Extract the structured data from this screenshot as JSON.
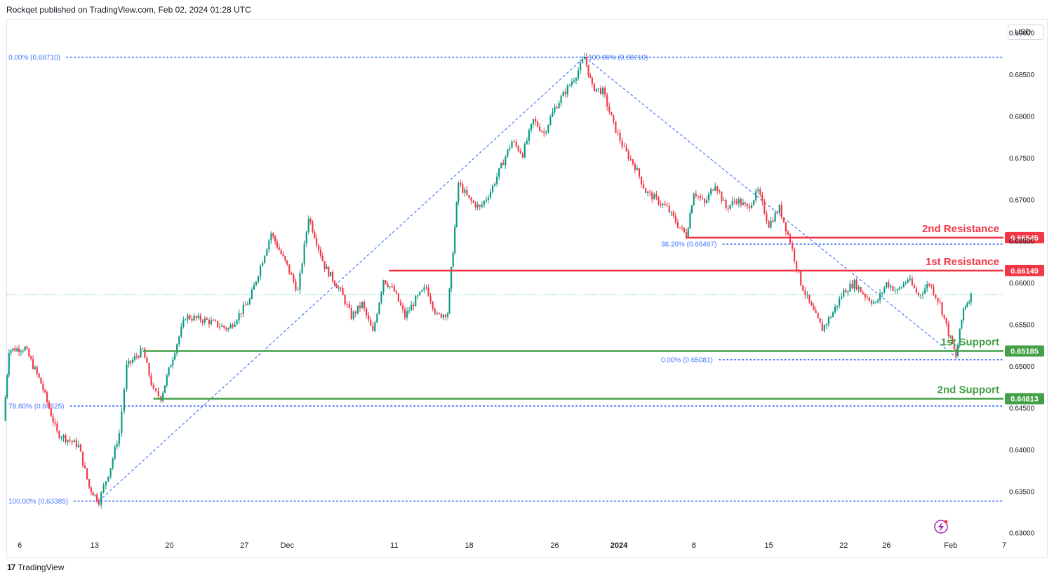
{
  "header": {
    "publisher_line": "Rockqet published on TradingView.com, Feb 02, 2024 01:28 UTC"
  },
  "currency_button": "USD",
  "footer": {
    "brand": "TradingView",
    "logo_mark": "17"
  },
  "colors": {
    "up": "#089981",
    "down": "#f23645",
    "resistance": "#f23645",
    "support": "#43a047",
    "fib": "#2962ff"
  },
  "chart_data": {
    "type": "candlestick",
    "y_axis": {
      "min": 0.6296,
      "max": 0.6916,
      "ticks": [
        "0.69000",
        "0.68500",
        "0.68000",
        "0.67500",
        "0.67000",
        "0.66500",
        "0.66000",
        "0.65500",
        "0.65000",
        "0.64500",
        "0.64000",
        "0.63500",
        "0.63000"
      ]
    },
    "x_axis": {
      "ticks": [
        {
          "label": "6",
          "day": 0
        },
        {
          "label": "13",
          "day": 7
        },
        {
          "label": "20",
          "day": 14
        },
        {
          "label": "27",
          "day": 21
        },
        {
          "label": "Dec",
          "day": 25
        },
        {
          "label": "11",
          "day": 35
        },
        {
          "label": "18",
          "day": 42
        },
        {
          "label": "26",
          "day": 50
        },
        {
          "label": "2024",
          "day": 56
        },
        {
          "label": "8",
          "day": 63
        },
        {
          "label": "15",
          "day": 70
        },
        {
          "label": "22",
          "day": 77
        },
        {
          "label": "26",
          "day": 81
        },
        {
          "label": "Feb",
          "day": 87
        },
        {
          "label": "7",
          "day": 92
        }
      ]
    },
    "key_points": [
      {
        "day": -1.5,
        "price": 0.6435
      },
      {
        "day": -1.0,
        "price": 0.652
      },
      {
        "day": 0.5,
        "price": 0.6522
      },
      {
        "day": 2.0,
        "price": 0.648
      },
      {
        "day": 3.5,
        "price": 0.642
      },
      {
        "day": 5.5,
        "price": 0.6405
      },
      {
        "day": 6.5,
        "price": 0.6355
      },
      {
        "day": 7.4,
        "price": 0.63385
      },
      {
        "day": 8.5,
        "price": 0.638
      },
      {
        "day": 9.3,
        "price": 0.642
      },
      {
        "day": 10.0,
        "price": 0.65
      },
      {
        "day": 11.5,
        "price": 0.652
      },
      {
        "day": 12.5,
        "price": 0.647
      },
      {
        "day": 13.2,
        "price": 0.64625
      },
      {
        "day": 14.5,
        "price": 0.652
      },
      {
        "day": 15.5,
        "price": 0.656
      },
      {
        "day": 17.5,
        "price": 0.6555
      },
      {
        "day": 19.5,
        "price": 0.6545
      },
      {
        "day": 21.5,
        "price": 0.658
      },
      {
        "day": 23.5,
        "price": 0.666
      },
      {
        "day": 25.0,
        "price": 0.662
      },
      {
        "day": 26.0,
        "price": 0.659
      },
      {
        "day": 27.0,
        "price": 0.668
      },
      {
        "day": 28.5,
        "price": 0.662
      },
      {
        "day": 30.0,
        "price": 0.659
      },
      {
        "day": 31.0,
        "price": 0.656
      },
      {
        "day": 32.0,
        "price": 0.6575
      },
      {
        "day": 33.0,
        "price": 0.654
      },
      {
        "day": 34.0,
        "price": 0.6605
      },
      {
        "day": 35.0,
        "price": 0.659
      },
      {
        "day": 36.0,
        "price": 0.656
      },
      {
        "day": 37.0,
        "price": 0.658
      },
      {
        "day": 38.0,
        "price": 0.6595
      },
      {
        "day": 39.0,
        "price": 0.656
      },
      {
        "day": 40.0,
        "price": 0.6565
      },
      {
        "day": 40.5,
        "price": 0.664
      },
      {
        "day": 41.0,
        "price": 0.672
      },
      {
        "day": 42.0,
        "price": 0.67
      },
      {
        "day": 43.0,
        "price": 0.669
      },
      {
        "day": 44.0,
        "price": 0.671
      },
      {
        "day": 45.0,
        "price": 0.674
      },
      {
        "day": 46.0,
        "price": 0.677
      },
      {
        "day": 47.0,
        "price": 0.6755
      },
      {
        "day": 48.0,
        "price": 0.6795
      },
      {
        "day": 49.0,
        "price": 0.678
      },
      {
        "day": 50.0,
        "price": 0.681
      },
      {
        "day": 51.0,
        "price": 0.683
      },
      {
        "day": 52.0,
        "price": 0.685
      },
      {
        "day": 52.8,
        "price": 0.6871
      },
      {
        "day": 53.5,
        "price": 0.6835
      },
      {
        "day": 54.5,
        "price": 0.683
      },
      {
        "day": 55.5,
        "price": 0.679
      },
      {
        "day": 56.5,
        "price": 0.676
      },
      {
        "day": 57.5,
        "price": 0.674
      },
      {
        "day": 58.5,
        "price": 0.671
      },
      {
        "day": 59.5,
        "price": 0.67
      },
      {
        "day": 60.5,
        "price": 0.669
      },
      {
        "day": 61.5,
        "price": 0.667
      },
      {
        "day": 62.3,
        "price": 0.6657
      },
      {
        "day": 63.0,
        "price": 0.671
      },
      {
        "day": 64.0,
        "price": 0.6695
      },
      {
        "day": 65.0,
        "price": 0.672
      },
      {
        "day": 66.0,
        "price": 0.669
      },
      {
        "day": 67.0,
        "price": 0.67
      },
      {
        "day": 68.0,
        "price": 0.669
      },
      {
        "day": 69.0,
        "price": 0.671
      },
      {
        "day": 70.0,
        "price": 0.667
      },
      {
        "day": 71.0,
        "price": 0.669
      },
      {
        "day": 72.0,
        "price": 0.665
      },
      {
        "day": 73.0,
        "price": 0.66
      },
      {
        "day": 74.0,
        "price": 0.657
      },
      {
        "day": 75.0,
        "price": 0.6545
      },
      {
        "day": 76.0,
        "price": 0.6565
      },
      {
        "day": 77.0,
        "price": 0.659
      },
      {
        "day": 78.0,
        "price": 0.66
      },
      {
        "day": 79.0,
        "price": 0.6585
      },
      {
        "day": 80.0,
        "price": 0.6575
      },
      {
        "day": 81.0,
        "price": 0.66
      },
      {
        "day": 82.0,
        "price": 0.659
      },
      {
        "day": 83.0,
        "price": 0.6605
      },
      {
        "day": 84.0,
        "price": 0.6585
      },
      {
        "day": 85.0,
        "price": 0.66
      },
      {
        "day": 86.0,
        "price": 0.6575
      },
      {
        "day": 86.8,
        "price": 0.654
      },
      {
        "day": 87.5,
        "price": 0.6512
      },
      {
        "day": 88.2,
        "price": 0.657
      },
      {
        "day": 88.9,
        "price": 0.6585
      }
    ],
    "last_price": 0.6586,
    "fib_levels": [
      {
        "label": "0.00% (0.68710)",
        "price": 0.6871,
        "x_start_day": -1.9,
        "x_end_day": 96
      },
      {
        "label": "100.00% (0.68710)",
        "price": 0.6871,
        "x_start_day": 53.0,
        "x_end_day": 53.0
      },
      {
        "label": "38.20% (0.66467)",
        "price": 0.66467,
        "x_start_day": 59.8,
        "x_end_day": 96
      },
      {
        "label": "0.00% (0.65081)",
        "price": 0.65081,
        "x_start_day": 59.8,
        "x_end_day": 96
      },
      {
        "label": "78.60% (0.64525)",
        "price": 0.64525,
        "x_start_day": -1.9,
        "x_end_day": 96
      },
      {
        "label": "100.00% (0.63385)",
        "price": 0.63385,
        "x_start_day": -1.9,
        "x_end_day": 96
      }
    ],
    "trendlines": [
      {
        "from": {
          "day": 7.4,
          "price": 0.63385
        },
        "to": {
          "day": 52.8,
          "price": 0.6871
        }
      },
      {
        "from": {
          "day": 52.8,
          "price": 0.6871
        },
        "to": {
          "day": 87.8,
          "price": 0.65081
        }
      }
    ],
    "levels": [
      {
        "name": "2nd Resistance",
        "price": 0.66545,
        "tag": "0.66545",
        "color": "#f23645",
        "from_day": 62.3
      },
      {
        "name": "1st Resistance",
        "price": 0.66149,
        "tag": "0.66149",
        "color": "#f23645",
        "from_day": 34.5
      },
      {
        "name": "1st Support",
        "price": 0.65185,
        "tag": "0.65185",
        "color": "#43a047",
        "from_day": 11.5
      },
      {
        "name": "2nd Support",
        "price": 0.64613,
        "tag": "0.64613",
        "color": "#43a047",
        "from_day": 12.5
      }
    ]
  }
}
